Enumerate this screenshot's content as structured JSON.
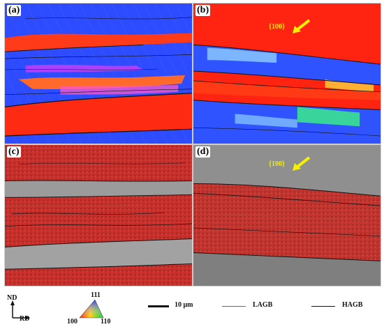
{
  "panels": [
    {
      "id": "a",
      "label": "(a)"
    },
    {
      "id": "b",
      "label": "(b)",
      "annotation": "{100}"
    },
    {
      "id": "c",
      "label": "(c)"
    },
    {
      "id": "d",
      "label": "(d)",
      "annotation": "{100}"
    }
  ],
  "legend": {
    "axes": {
      "nd": "ND",
      "rd": "RD"
    },
    "ipf": {
      "top": "111",
      "left": "100",
      "right": "110"
    },
    "scale_bar": "10 μm",
    "lagb": "LAGB",
    "hagb": "HAGB"
  },
  "colors": {
    "annotation": "#f4f000",
    "lagb": "#b24a3a",
    "hagb": "#111111",
    "ipf_red": "#ff2a12",
    "ipf_blue": "#2a46ff",
    "kam_red": "#d0362f",
    "band_gray": "#9a9a9a"
  }
}
